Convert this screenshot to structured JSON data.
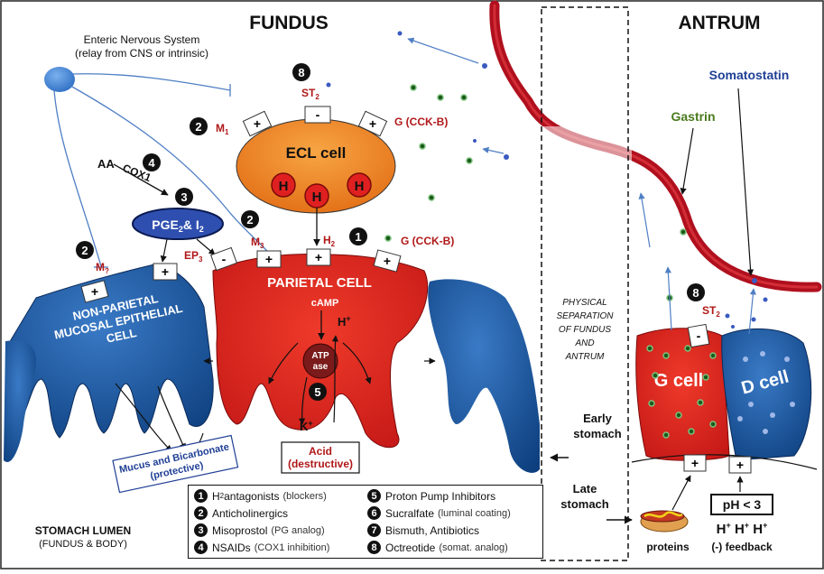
{
  "titles": {
    "fundus": "FUNDUS",
    "antrum": "ANTRUM"
  },
  "ens": {
    "line1": "Enteric Nervous System",
    "line2": "(relay from CNS or intrinsic)"
  },
  "ecl": {
    "label": "ECL cell",
    "h": "H"
  },
  "parietal": {
    "label": "PARIETAL CELL",
    "camp": "cAMP",
    "hplus": "H",
    "atpase1": "ATP",
    "atpase2": "ase",
    "kplus": "K",
    "acid1": "Acid",
    "acid2": "(destructive)"
  },
  "receptors": {
    "m1": "M",
    "m1sub": "1",
    "m3": "M",
    "m3sub": "3",
    "mq": "M",
    "mqsub": "?",
    "st2": "ST",
    "st2sub": "2",
    "gcck": "G (CCK-B)",
    "ep3": "EP",
    "ep3sub": "3",
    "h2": "H",
    "h2sub": "2",
    "aa": "AA",
    "cox1": "COX1",
    "pge": "PGE",
    "pgesub": "2",
    "pgeamp": "& I",
    "pgeisub": "2"
  },
  "mucosal": {
    "line1": "NON-PARIETAL",
    "line2": "MUCOSAL EPITHELIAL",
    "line3": "CELL",
    "mucus1": "Mucus and Bicarbonate",
    "mucus2": "(protective)"
  },
  "separation": {
    "line1": "PHYSICAL",
    "line2": "SEPARATION",
    "line3": "OF FUNDUS",
    "line4": "AND",
    "line5": "ANTRUM"
  },
  "stomach": {
    "early1": "Early",
    "early2": "stomach",
    "late1": "Late",
    "late2": "stomach",
    "lumen1": "STOMACH LUMEN",
    "lumen2": "(FUNDUS & BODY)"
  },
  "antrum": {
    "somatostatin": "Somatostatin",
    "gastrin": "Gastrin",
    "gcell": "G cell",
    "dcell": "D cell",
    "st2": "ST",
    "st2sub": "2",
    "proteins": "proteins",
    "ph": "pH < 3",
    "hhh": "H",
    "feedback": "(-) feedback"
  },
  "badges": [
    "1",
    "2",
    "3",
    "4",
    "5",
    "6",
    "7",
    "8"
  ],
  "legend": [
    {
      "num": "1",
      "main": "H",
      "sub": "2",
      "rest": " antagonists",
      "note": "(blockers)"
    },
    {
      "num": "2",
      "main": "Anticholinergics",
      "sub": "",
      "rest": "",
      "note": ""
    },
    {
      "num": "3",
      "main": "Misoprostol",
      "sub": "",
      "rest": "",
      "note": "(PG analog)"
    },
    {
      "num": "4",
      "main": "NSAIDs",
      "sub": "",
      "rest": "",
      "note": "(COX1 inhibition)"
    },
    {
      "num": "5",
      "main": "Proton Pump Inhibitors",
      "sub": "",
      "rest": "",
      "note": ""
    },
    {
      "num": "6",
      "main": "Sucralfate",
      "sub": "",
      "rest": "",
      "note": "(luminal coating)"
    },
    {
      "num": "7",
      "main": "Bismuth, Antibiotics",
      "sub": "",
      "rest": "",
      "note": ""
    },
    {
      "num": "8",
      "main": "Octreotide",
      "sub": "",
      "rest": "",
      "note": "(somat. analog)"
    }
  ],
  "colors": {
    "blue_cell": "#1b5aa5",
    "red_cell": "#d42020",
    "ecl_orange": "#f08a24",
    "vessel": "#b0101e",
    "pge_fill": "#2f4fb0",
    "text_red": "#b01818",
    "text_blue": "#1f3f95",
    "text_green": "#4a7a1c"
  }
}
